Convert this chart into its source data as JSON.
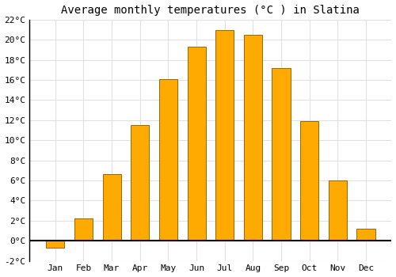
{
  "title": "Average monthly temperatures (°C ) in Slatina",
  "months": [
    "Jan",
    "Feb",
    "Mar",
    "Apr",
    "May",
    "Jun",
    "Jul",
    "Aug",
    "Sep",
    "Oct",
    "Nov",
    "Dec"
  ],
  "values": [
    -0.7,
    2.2,
    6.6,
    11.5,
    16.1,
    19.3,
    21.0,
    20.5,
    17.2,
    11.9,
    6.0,
    1.2
  ],
  "bar_color": "#FFAA00",
  "bar_edge_color": "#996600",
  "ylim": [
    -2,
    22
  ],
  "yticks": [
    -2,
    0,
    2,
    4,
    6,
    8,
    10,
    12,
    14,
    16,
    18,
    20,
    22
  ],
  "ytick_labels": [
    "-2°C",
    "0°C",
    "2°C",
    "4°C",
    "6°C",
    "8°C",
    "10°C",
    "12°C",
    "14°C",
    "16°C",
    "18°C",
    "20°C",
    "22°C"
  ],
  "grid_color": "#e0e0e0",
  "background_color": "#ffffff",
  "title_fontsize": 10,
  "tick_fontsize": 8,
  "bar_width": 0.65,
  "figsize": [
    5.0,
    3.5
  ],
  "dpi": 100
}
